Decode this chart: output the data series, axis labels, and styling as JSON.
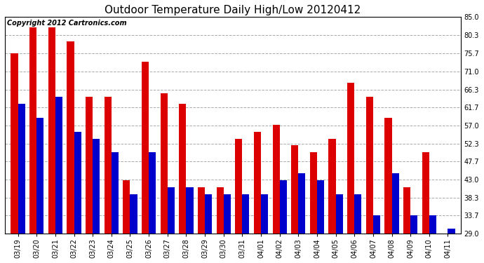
{
  "title": "Outdoor Temperature Daily High/Low 20120412",
  "copyright_text": "Copyright 2012 Cartronics.com",
  "dates": [
    "03/19",
    "03/20",
    "03/21",
    "03/22",
    "03/23",
    "03/24",
    "03/25",
    "03/26",
    "03/27",
    "03/28",
    "03/29",
    "03/30",
    "03/31",
    "04/01",
    "04/02",
    "04/03",
    "04/04",
    "04/05",
    "04/06",
    "04/07",
    "04/08",
    "04/09",
    "04/10",
    "04/11"
  ],
  "highs": [
    75.7,
    82.4,
    82.4,
    78.8,
    64.4,
    64.4,
    42.8,
    73.4,
    65.3,
    62.6,
    41.0,
    41.0,
    53.6,
    55.4,
    57.2,
    51.8,
    50.0,
    53.6,
    68.0,
    64.4,
    59.0,
    41.0,
    50.0,
    29.0
  ],
  "lows": [
    62.6,
    59.0,
    64.4,
    55.4,
    53.6,
    50.0,
    39.2,
    50.0,
    41.0,
    41.0,
    39.2,
    39.2,
    39.2,
    39.2,
    42.8,
    44.6,
    42.8,
    39.2,
    39.2,
    33.8,
    44.6,
    33.8,
    33.8,
    30.2
  ],
  "high_color": "#dd0000",
  "low_color": "#0000cc",
  "bg_color": "#ffffff",
  "grid_color": "#aaaaaa",
  "ylim": [
    29.0,
    85.0
  ],
  "yticks": [
    29.0,
    33.7,
    38.3,
    43.0,
    47.7,
    52.3,
    57.0,
    61.7,
    66.3,
    71.0,
    75.7,
    80.3,
    85.0
  ],
  "bar_width": 0.38,
  "title_fontsize": 11,
  "tick_fontsize": 7,
  "copyright_fontsize": 7
}
